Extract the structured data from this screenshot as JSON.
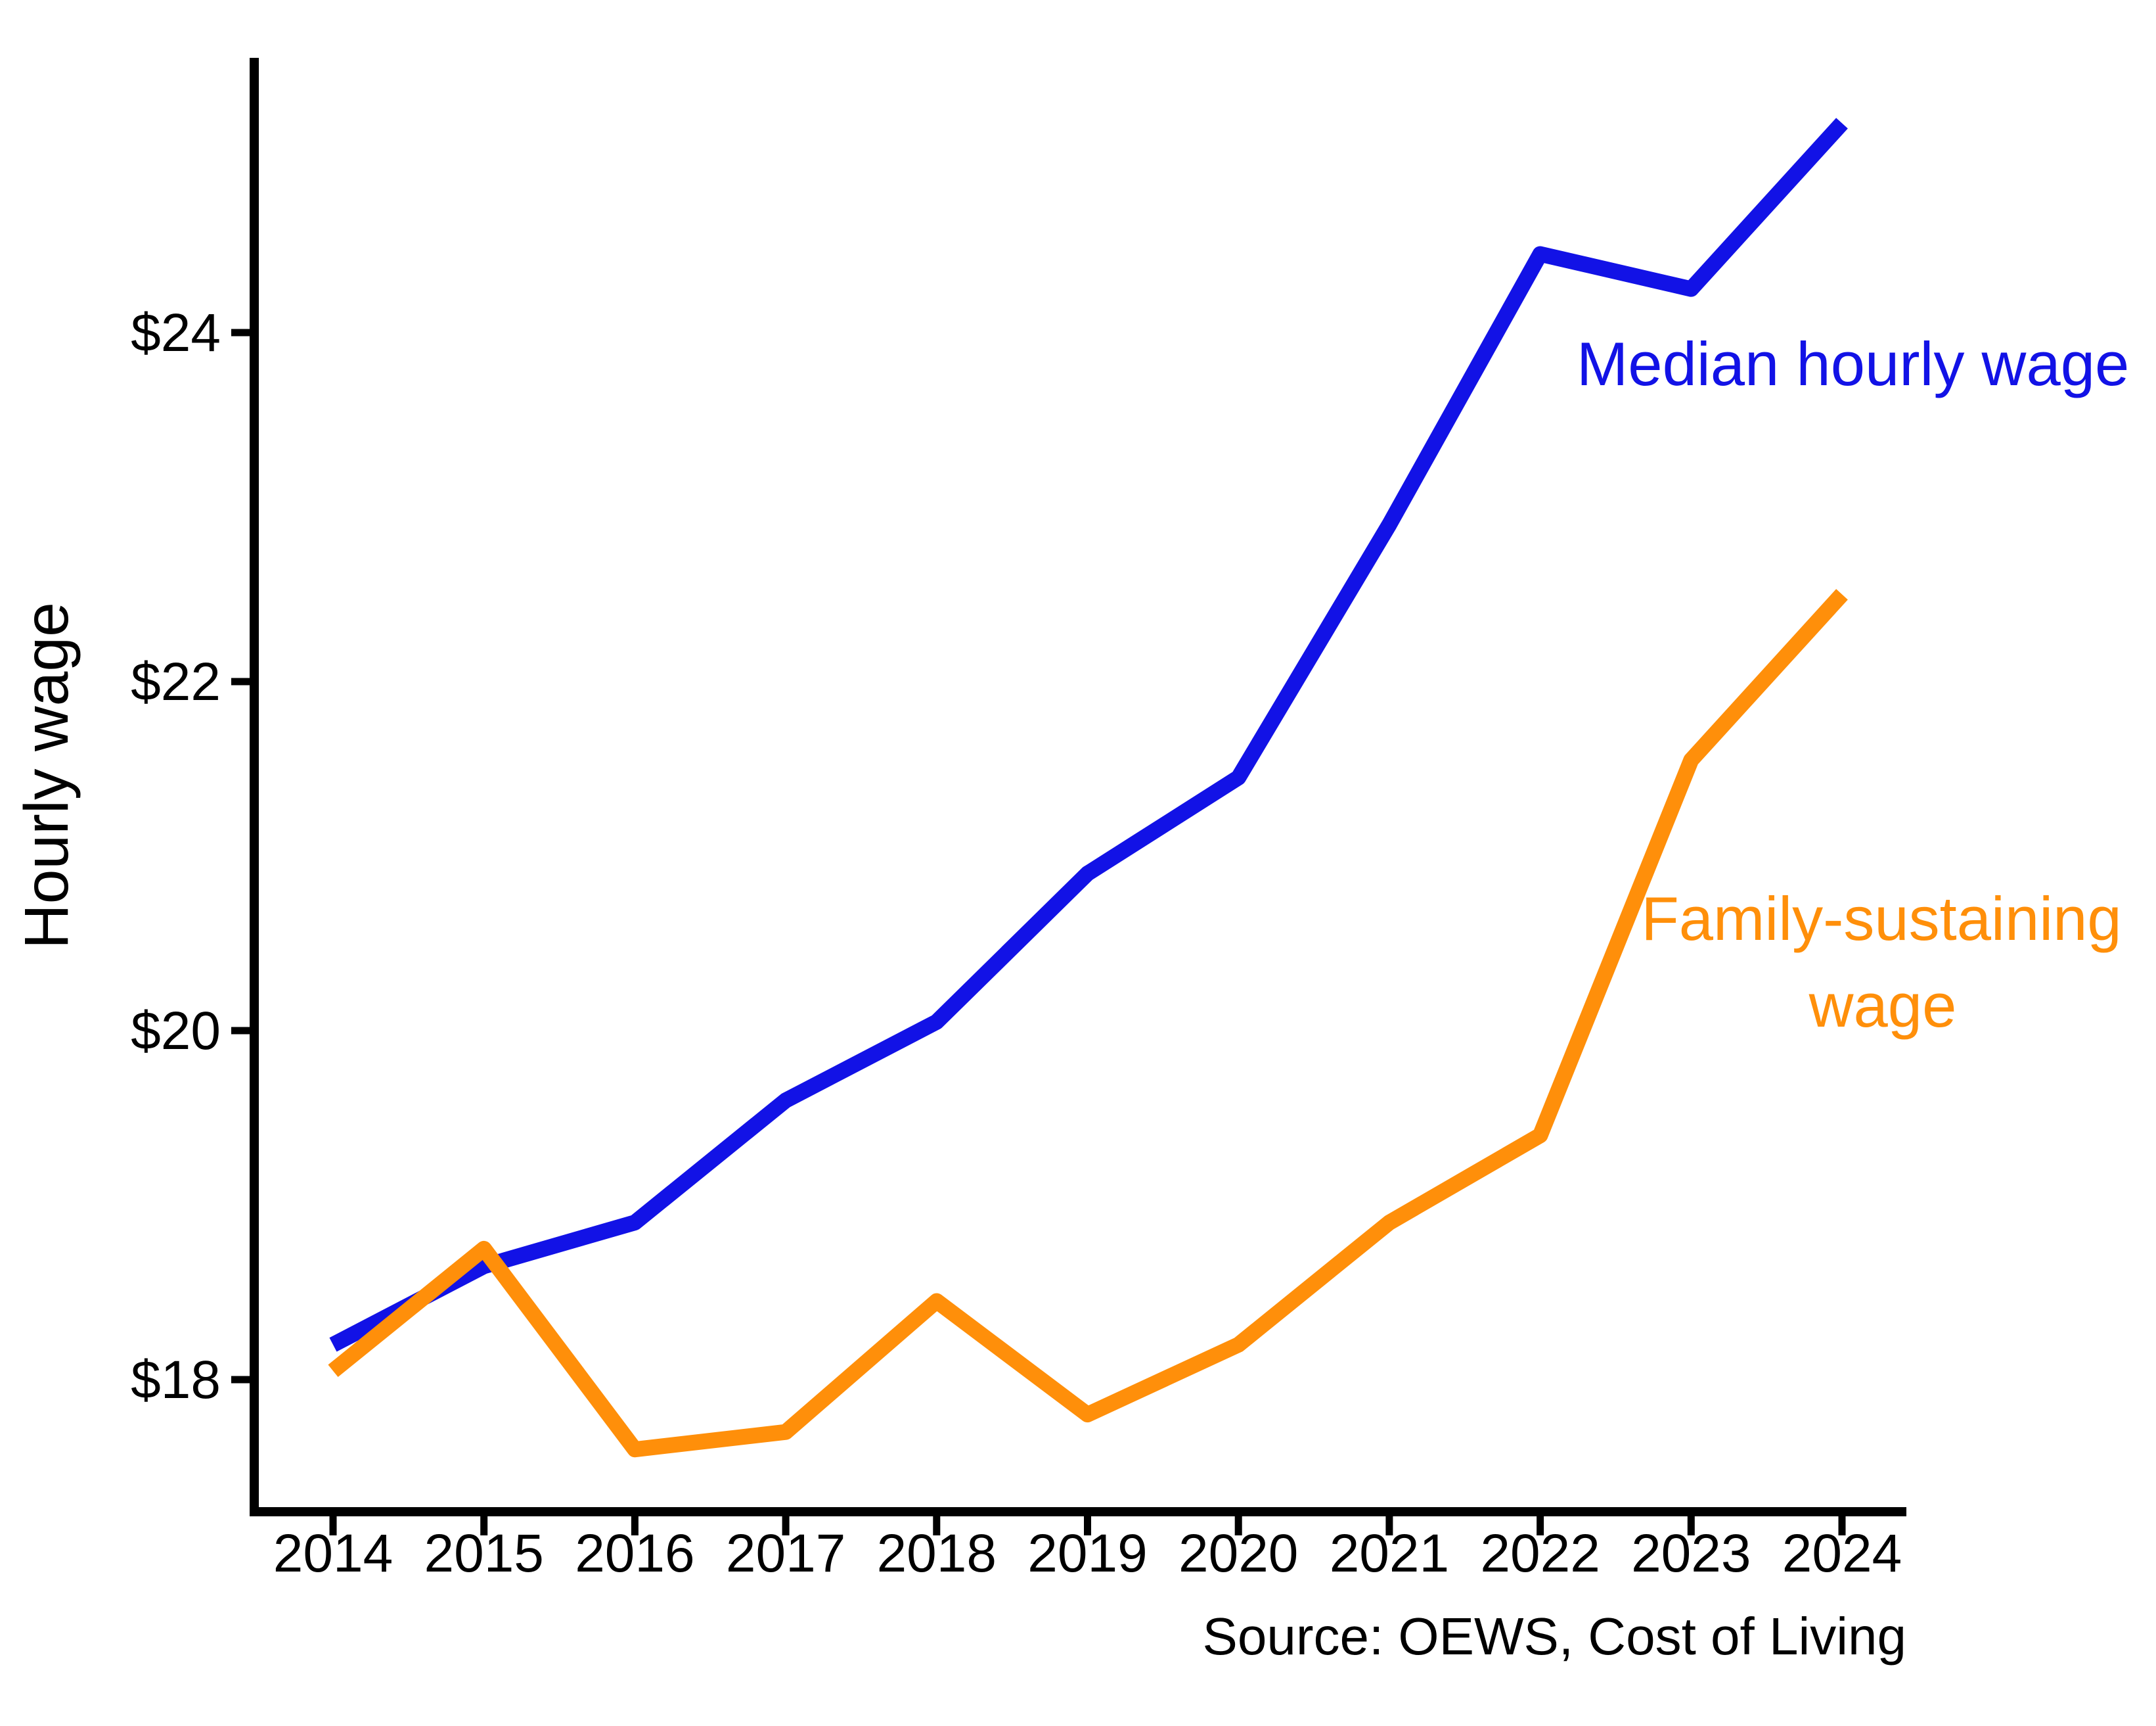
{
  "chart_data": {
    "type": "line",
    "x": [
      2014,
      2015,
      2016,
      2017,
      2018,
      2019,
      2020,
      2021,
      2022,
      2023,
      2024
    ],
    "x_tick_labels": [
      "2014",
      "2015",
      "2016",
      "2017",
      "2018",
      "2019",
      "2020",
      "2021",
      "2022",
      "2023",
      "2024"
    ],
    "series": [
      {
        "name": "Median hourly wage",
        "color": "#1212e6",
        "values": [
          18.2,
          18.65,
          18.9,
          19.6,
          20.05,
          20.9,
          21.45,
          22.9,
          24.45,
          24.25,
          25.2
        ]
      },
      {
        "name": "Family-sustaining wage",
        "color": "#ff8f0a",
        "values": [
          18.05,
          18.75,
          17.6,
          17.7,
          18.45,
          17.8,
          18.2,
          18.9,
          19.4,
          21.55,
          22.5
        ]
      }
    ],
    "y_ticks": [
      {
        "value": 18,
        "label": "$18"
      },
      {
        "value": 20,
        "label": "$20"
      },
      {
        "value": 22,
        "label": "$22"
      },
      {
        "value": 24,
        "label": "$24"
      }
    ],
    "ylabel": "Hourly wage",
    "xlabel": "",
    "ylim": [
      17.2,
      25.55
    ],
    "grid": false,
    "legend_position": "inline-annotations",
    "source_note": "Source: OEWS, Cost of Living"
  },
  "labels": {
    "y_axis_title": "Hourly wage",
    "blue_annotation": "Median hourly wage",
    "orange_annotation_line1": "Family-sustaining",
    "orange_annotation_line2": "wage",
    "source": "Source: OEWS, Cost of Living"
  },
  "colors": {
    "blue": "#1212e6",
    "orange": "#ff8f0a",
    "axis": "#000000",
    "background": "#ffffff"
  }
}
